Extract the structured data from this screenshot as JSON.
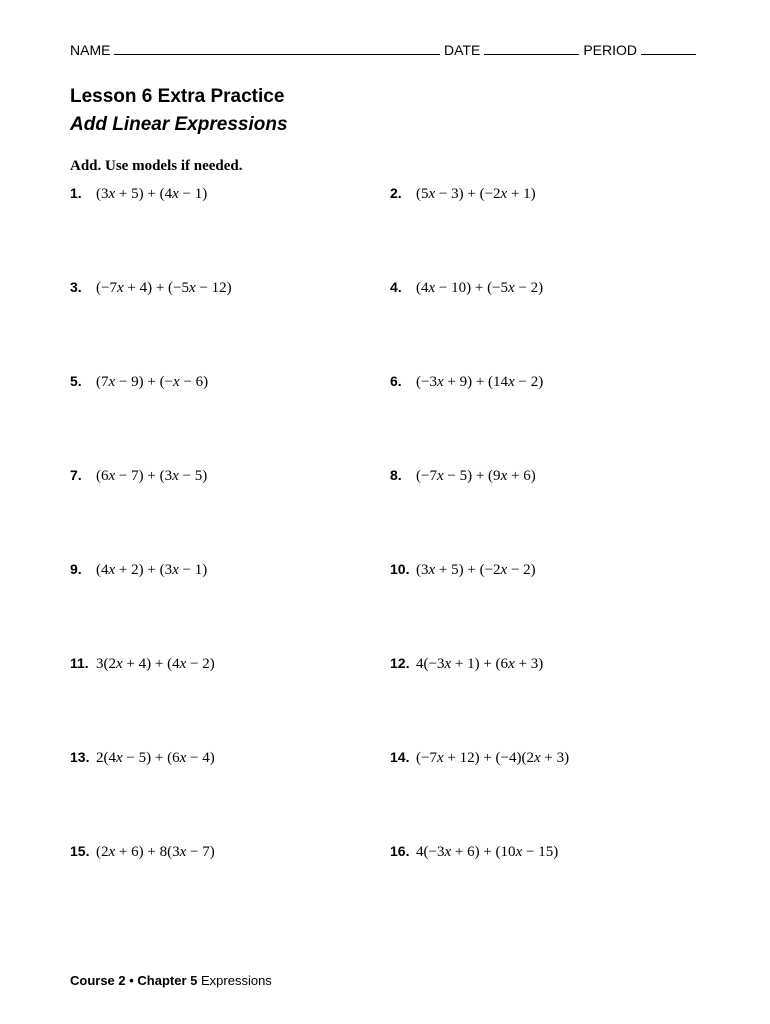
{
  "header": {
    "name_label": "NAME",
    "date_label": "DATE",
    "period_label": "PERIOD"
  },
  "title_line1": "Lesson 6 Extra Practice",
  "title_line2": "Add Linear Expressions",
  "instruction": "Add. Use models if needed.",
  "problems": [
    {
      "num": "1.",
      "expr": "(3x + 5) + (4x − 1)"
    },
    {
      "num": "2.",
      "expr": "(5x − 3) + (−2x + 1)"
    },
    {
      "num": "3.",
      "expr": "(−7x + 4) + (−5x − 12)"
    },
    {
      "num": "4.",
      "expr": "(4x − 10) + (−5x − 2)"
    },
    {
      "num": "5.",
      "expr": "(7x − 9) + (−x − 6)"
    },
    {
      "num": "6.",
      "expr": "(−3x + 9) + (14x − 2)"
    },
    {
      "num": "7.",
      "expr": "(6x − 7) + (3x − 5)"
    },
    {
      "num": "8.",
      "expr": "(−7x − 5) + (9x + 6)"
    },
    {
      "num": "9.",
      "expr": "(4x + 2) + (3x − 1)"
    },
    {
      "num": "10.",
      "expr": "(3x + 5) + (−2x − 2)"
    },
    {
      "num": "11.",
      "expr": "3(2x + 4) + (4x − 2)"
    },
    {
      "num": "12.",
      "expr": "4(−3x + 1) + (6x + 3)"
    },
    {
      "num": "13.",
      "expr": "2(4x − 5) + (6x − 4)"
    },
    {
      "num": "14.",
      "expr": " (−7x + 12) + (−4)(2x + 3)"
    },
    {
      "num": "15.",
      "expr": "(2x + 6) + 8(3x − 7)"
    },
    {
      "num": "16.",
      "expr": "4(−3x + 6) + (10x − 15)"
    }
  ],
  "footer": {
    "bold": "Course 2 • Chapter 5",
    "rest": " Expressions"
  },
  "style": {
    "page_bg": "#ffffff",
    "text_color": "#000000",
    "title_fontsize": 19,
    "body_fontsize": 15,
    "num_fontsize": 14,
    "footer_fontsize": 13
  }
}
